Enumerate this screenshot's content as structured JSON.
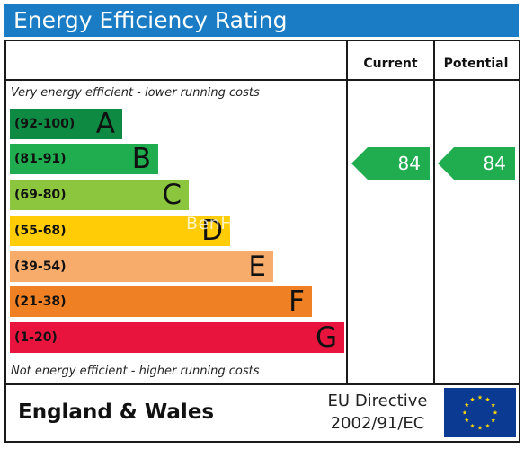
{
  "title": "Energy Efficiency Rating",
  "columns": {
    "current": "Current",
    "potential": "Potential"
  },
  "notes": {
    "top": "Very energy efficient - lower running costs",
    "bottom": "Not energy efficient - higher running costs"
  },
  "bands": [
    {
      "range": "(92-100)",
      "letter": "A",
      "color": "#0f8a43"
    },
    {
      "range": "(81-91)",
      "letter": "B",
      "color": "#1fad4f"
    },
    {
      "range": "(69-80)",
      "letter": "C",
      "color": "#8cc63f"
    },
    {
      "range": "(55-68)",
      "letter": "D",
      "color": "#ffcc05"
    },
    {
      "range": "(39-54)",
      "letter": "E",
      "color": "#f7ac6b"
    },
    {
      "range": "(21-38)",
      "letter": "F",
      "color": "#ef8023"
    },
    {
      "range": "(1-20)",
      "letter": "G",
      "color": "#e9143d"
    }
  ],
  "ratings": {
    "current": 84,
    "potential": 84,
    "band_letter": "B",
    "arrow_color": "#1fad4f"
  },
  "watermark": "BenH",
  "footer": {
    "region": "England & Wales",
    "directive_line1": "EU Directive",
    "directive_line2": "2002/91/EC"
  },
  "colors": {
    "title_bar": "#1a7cc4",
    "eu_flag_blue": "#0b3a93",
    "eu_flag_star": "#ffd700"
  }
}
